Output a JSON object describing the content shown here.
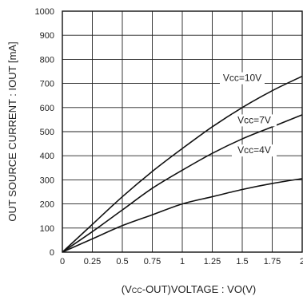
{
  "chart_data": {
    "type": "line",
    "xlabel": "(Vcc-OUT)VOLTAGE : VO(V)",
    "xlabel_parts": {
      "open": "(V",
      "sub": "CC",
      "rest": "-OUT)VOLTAGE : VO(V)"
    },
    "ylabel": "OUT SOURCE CURRENT : IOUT [mA]",
    "xlim": [
      0,
      2
    ],
    "ylim": [
      0,
      1000
    ],
    "x_ticks": [
      "0",
      "0.25",
      "0.5",
      "0.75",
      "1",
      "1.25",
      "1.5",
      "1.75",
      "2"
    ],
    "y_ticks": [
      "0",
      "100",
      "200",
      "300",
      "400",
      "500",
      "600",
      "700",
      "800",
      "900",
      "1000"
    ],
    "grid": true,
    "series": [
      {
        "name": "Vcc=10V",
        "x": [
          0,
          0.25,
          0.5,
          0.75,
          1,
          1.25,
          1.5,
          1.75,
          2
        ],
        "y": [
          0,
          115,
          230,
          335,
          430,
          520,
          600,
          670,
          730
        ],
        "label_at": [
          1.5,
          710
        ]
      },
      {
        "name": "Vcc=7V",
        "x": [
          0,
          0.25,
          0.5,
          0.75,
          1,
          1.25,
          1.5,
          1.75,
          2
        ],
        "y": [
          0,
          85,
          175,
          265,
          340,
          410,
          470,
          520,
          570
        ],
        "label_at": [
          1.6,
          535
        ]
      },
      {
        "name": "Vcc=4V",
        "x": [
          0,
          0.25,
          0.5,
          0.75,
          1,
          1.25,
          1.5,
          1.75,
          2
        ],
        "y": [
          0,
          55,
          110,
          155,
          200,
          230,
          260,
          285,
          305
        ],
        "label_at": [
          1.6,
          410
        ]
      }
    ]
  }
}
